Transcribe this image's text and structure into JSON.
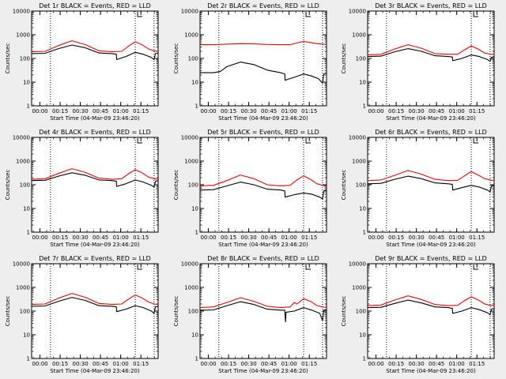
{
  "chart_data": [
    {
      "type": "line",
      "title": "Det 1r BLACK = Events, RED = LLD",
      "ylabel": "Counts/sec",
      "xlabel": "Start Time (04-Mar-09 23:46:20)",
      "y_scale": "log",
      "ylim": [
        1,
        10000
      ],
      "y_tick_labels": [
        "1",
        "10",
        "100",
        "1000",
        "10000"
      ],
      "x_tick_labels": [
        "00:00",
        "00:15",
        "00:30",
        "00:45",
        "01:00",
        "01:15"
      ],
      "xlim_minutes_after_start": [
        0,
        94
      ],
      "vertical_dotted_lines_minutes": [
        14,
        77,
        91
      ],
      "series": [
        {
          "color": "#ff0000",
          "x": [
            0,
            10,
            20,
            30,
            40,
            50,
            60,
            67,
            72,
            77,
            82,
            87,
            91,
            94
          ],
          "y": [
            190,
            200,
            350,
            560,
            380,
            210,
            190,
            200,
            330,
            500,
            380,
            250,
            210,
            200
          ]
        },
        {
          "color": "#000000",
          "x": [
            0,
            10,
            20,
            30,
            40,
            50,
            60,
            63,
            63.2,
            70,
            77,
            83,
            89,
            91,
            92,
            94
          ],
          "y": [
            160,
            165,
            260,
            370,
            280,
            170,
            160,
            150,
            90,
            120,
            180,
            150,
            110,
            90,
            160,
            170
          ]
        }
      ]
    },
    {
      "type": "line",
      "title": "Det 2r BLACK = Events, RED = LLD",
      "ylabel": "Counts/sec",
      "xlabel": "Start Time (04-Mar-09 23:46:20)",
      "y_scale": "log",
      "ylim": [
        1,
        10000
      ],
      "y_tick_labels": [
        "1",
        "10",
        "100",
        "1000",
        "10000"
      ],
      "x_tick_labels": [
        "00:00",
        "00:15",
        "00:30",
        "00:45",
        "01:00",
        "01:15"
      ],
      "xlim_minutes_after_start": [
        0,
        94
      ],
      "vertical_dotted_lines_minutes": [
        14,
        77,
        91
      ],
      "series": [
        {
          "color": "#ff0000",
          "x": [
            0,
            10,
            20,
            30,
            40,
            50,
            60,
            67,
            72,
            77,
            82,
            87,
            91,
            94
          ],
          "y": [
            380,
            380,
            400,
            420,
            410,
            390,
            380,
            380,
            450,
            520,
            470,
            420,
            400,
            390
          ]
        },
        {
          "color": "#000000",
          "x": [
            0,
            10,
            15,
            20,
            30,
            40,
            50,
            60,
            63,
            63.2,
            70,
            77,
            83,
            88,
            91,
            92,
            94
          ],
          "y": [
            25,
            25,
            28,
            45,
            70,
            55,
            32,
            25,
            22,
            12,
            16,
            22,
            18,
            14,
            9,
            22,
            25
          ]
        }
      ]
    },
    {
      "type": "line",
      "title": "Det 3r BLACK = Events, RED = LLD",
      "ylabel": "Counts/sec",
      "xlabel": "Start Time (04-Mar-09 23:46:20)",
      "y_scale": "log",
      "ylim": [
        1,
        10000
      ],
      "y_tick_labels": [
        "1",
        "10",
        "100",
        "1000",
        "10000"
      ],
      "x_tick_labels": [
        "00:00",
        "00:15",
        "00:30",
        "00:45",
        "01:00",
        "01:15"
      ],
      "xlim_minutes_after_start": [
        0,
        94
      ],
      "vertical_dotted_lines_minutes": [
        14,
        77,
        91
      ],
      "series": [
        {
          "color": "#ff0000",
          "x": [
            0,
            10,
            20,
            30,
            40,
            50,
            60,
            67,
            72,
            77,
            82,
            87,
            91,
            94
          ],
          "y": [
            140,
            150,
            250,
            380,
            270,
            160,
            150,
            150,
            230,
            340,
            250,
            170,
            150,
            150
          ]
        },
        {
          "color": "#000000",
          "x": [
            0,
            10,
            20,
            30,
            40,
            50,
            60,
            63,
            63.2,
            70,
            77,
            83,
            89,
            91,
            92,
            94
          ],
          "y": [
            120,
            125,
            190,
            260,
            200,
            130,
            120,
            115,
            80,
            100,
            140,
            120,
            90,
            75,
            110,
            120
          ]
        }
      ]
    },
    {
      "type": "line",
      "title": "Det 4r BLACK = Events, RED = LLD",
      "ylabel": "Counts/sec",
      "xlabel": "Start Time (04-Mar-09 23:46:20)",
      "y_scale": "log",
      "ylim": [
        1,
        10000
      ],
      "y_tick_labels": [
        "1",
        "10",
        "100",
        "1000",
        "10000"
      ],
      "x_tick_labels": [
        "00:00",
        "00:15",
        "00:30",
        "00:45",
        "01:00",
        "01:15"
      ],
      "xlim_minutes_after_start": [
        0,
        94
      ],
      "vertical_dotted_lines_minutes": [
        14,
        77,
        91
      ],
      "series": [
        {
          "color": "#ff0000",
          "x": [
            0,
            10,
            20,
            30,
            40,
            50,
            60,
            67,
            72,
            77,
            82,
            87,
            91,
            94
          ],
          "y": [
            170,
            180,
            300,
            480,
            330,
            190,
            170,
            180,
            290,
            430,
            320,
            210,
            180,
            170
          ]
        },
        {
          "color": "#000000",
          "x": [
            0,
            10,
            20,
            30,
            40,
            50,
            60,
            63,
            63.2,
            70,
            77,
            83,
            89,
            91,
            92,
            94
          ],
          "y": [
            150,
            155,
            230,
            320,
            250,
            160,
            150,
            140,
            85,
            110,
            160,
            130,
            95,
            80,
            140,
            150
          ]
        }
      ]
    },
    {
      "type": "line",
      "title": "Det 5r BLACK = Events, RED = LLD",
      "ylabel": "Counts/sec",
      "xlabel": "Start Time (04-Mar-09 23:46:20)",
      "y_scale": "log",
      "ylim": [
        1,
        10000
      ],
      "y_tick_labels": [
        "1",
        "10",
        "100",
        "1000",
        "10000"
      ],
      "x_tick_labels": [
        "00:00",
        "00:15",
        "00:30",
        "00:45",
        "01:00",
        "01:15"
      ],
      "xlim_minutes_after_start": [
        0,
        94
      ],
      "vertical_dotted_lines_minutes": [
        14,
        77,
        91
      ],
      "series": [
        {
          "color": "#ff0000",
          "x": [
            0,
            10,
            20,
            30,
            40,
            50,
            60,
            67,
            72,
            77,
            82,
            87,
            91,
            94
          ],
          "y": [
            90,
            95,
            150,
            260,
            180,
            100,
            90,
            95,
            160,
            240,
            170,
            110,
            95,
            90
          ]
        },
        {
          "color": "#000000",
          "x": [
            0,
            10,
            20,
            30,
            40,
            50,
            60,
            63,
            63.2,
            70,
            77,
            83,
            89,
            91,
            92,
            94
          ],
          "y": [
            60,
            62,
            90,
            130,
            100,
            65,
            60,
            55,
            30,
            38,
            45,
            40,
            30,
            25,
            55,
            60
          ]
        }
      ]
    },
    {
      "type": "line",
      "title": "Det 6r BLACK = Events, RED = LLD",
      "ylabel": "Counts/sec",
      "xlabel": "Start Time (04-Mar-09 23:46:20)",
      "y_scale": "log",
      "ylim": [
        1,
        10000
      ],
      "y_tick_labels": [
        "1",
        "10",
        "100",
        "1000",
        "10000"
      ],
      "x_tick_labels": [
        "00:00",
        "00:15",
        "00:30",
        "00:45",
        "01:00",
        "01:15"
      ],
      "xlim_minutes_after_start": [
        0,
        94
      ],
      "vertical_dotted_lines_minutes": [
        14,
        77,
        91
      ],
      "series": [
        {
          "color": "#ff0000",
          "x": [
            0,
            10,
            20,
            30,
            40,
            50,
            60,
            67,
            72,
            77,
            82,
            87,
            91,
            94
          ],
          "y": [
            150,
            160,
            250,
            400,
            280,
            170,
            150,
            155,
            240,
            360,
            260,
            180,
            160,
            150
          ]
        },
        {
          "color": "#000000",
          "x": [
            0,
            10,
            20,
            30,
            40,
            50,
            60,
            63,
            63.2,
            70,
            77,
            83,
            89,
            91,
            92,
            94
          ],
          "y": [
            110,
            115,
            170,
            230,
            180,
            120,
            110,
            105,
            60,
            75,
            95,
            80,
            60,
            50,
            90,
            100
          ]
        }
      ]
    },
    {
      "type": "line",
      "title": "Det 7r BLACK = Events, RED = LLD",
      "ylabel": "Counts/sec",
      "xlabel": "Start Time (04-Mar-09 23:46:20)",
      "y_scale": "log",
      "ylim": [
        1,
        10000
      ],
      "y_tick_labels": [
        "1",
        "10",
        "100",
        "1000",
        "10000"
      ],
      "x_tick_labels": [
        "00:00",
        "00:15",
        "00:30",
        "00:45",
        "01:00",
        "01:15"
      ],
      "xlim_minutes_after_start": [
        0,
        94
      ],
      "vertical_dotted_lines_minutes": [
        14,
        77,
        91
      ],
      "series": [
        {
          "color": "#ff0000",
          "x": [
            0,
            10,
            20,
            30,
            40,
            50,
            60,
            67,
            72,
            77,
            82,
            87,
            91,
            94
          ],
          "y": [
            190,
            200,
            350,
            560,
            380,
            210,
            190,
            200,
            320,
            480,
            360,
            240,
            200,
            190
          ]
        },
        {
          "color": "#000000",
          "x": [
            0,
            10,
            20,
            30,
            40,
            50,
            60,
            63,
            63.2,
            70,
            77,
            83,
            89,
            91,
            92,
            94
          ],
          "y": [
            160,
            165,
            260,
            380,
            280,
            170,
            160,
            150,
            95,
            120,
            170,
            140,
            100,
            80,
            150,
            160
          ]
        }
      ]
    },
    {
      "type": "line",
      "title": "Det 8r BLACK = Events, RED = LLD",
      "ylabel": "Counts/sec",
      "xlabel": "Start Time (04-Mar-09 23:46:20)",
      "y_scale": "log",
      "ylim": [
        1,
        10000
      ],
      "y_tick_labels": [
        "1",
        "10",
        "100",
        "1000",
        "10000"
      ],
      "x_tick_labels": [
        "00:00",
        "00:15",
        "00:30",
        "00:45",
        "01:00",
        "01:15"
      ],
      "xlim_minutes_after_start": [
        0,
        94
      ],
      "vertical_dotted_lines_minutes": [
        14,
        77,
        91
      ],
      "series": [
        {
          "color": "#ff0000",
          "x": [
            0,
            10,
            20,
            30,
            40,
            50,
            60,
            67,
            70,
            72,
            77,
            82,
            87,
            91,
            94
          ],
          "y": [
            140,
            150,
            230,
            370,
            260,
            160,
            140,
            150,
            230,
            200,
            330,
            260,
            170,
            150,
            140
          ]
        },
        {
          "color": "#000000",
          "x": [
            0,
            10,
            20,
            30,
            40,
            50,
            60,
            63,
            63.5,
            64,
            70,
            77,
            83,
            89,
            91,
            92,
            94
          ],
          "y": [
            110,
            112,
            170,
            250,
            190,
            120,
            110,
            110,
            35,
            90,
            100,
            140,
            110,
            80,
            40,
            110,
            115
          ]
        }
      ]
    },
    {
      "type": "line",
      "title": "Det 9r BLACK = Events, RED = LLD",
      "ylabel": "Counts/sec",
      "xlabel": "Start Time (04-Mar-09 23:46:20)",
      "y_scale": "log",
      "ylim": [
        1,
        10000
      ],
      "y_tick_labels": [
        "1",
        "10",
        "100",
        "1000",
        "10000"
      ],
      "x_tick_labels": [
        "00:00",
        "00:15",
        "00:30",
        "00:45",
        "01:00",
        "01:15"
      ],
      "xlim_minutes_after_start": [
        0,
        94
      ],
      "vertical_dotted_lines_minutes": [
        14,
        77,
        91
      ],
      "series": [
        {
          "color": "#ff0000",
          "x": [
            0,
            10,
            20,
            30,
            40,
            50,
            60,
            67,
            72,
            77,
            82,
            87,
            91,
            94
          ],
          "y": [
            170,
            180,
            290,
            440,
            310,
            190,
            170,
            175,
            280,
            400,
            300,
            200,
            175,
            170
          ]
        },
        {
          "color": "#000000",
          "x": [
            0,
            10,
            20,
            30,
            40,
            50,
            60,
            63,
            63.2,
            70,
            77,
            83,
            89,
            91,
            92,
            94
          ],
          "y": [
            140,
            145,
            210,
            290,
            220,
            150,
            140,
            130,
            80,
            100,
            140,
            115,
            85,
            70,
            120,
            130
          ]
        }
      ]
    }
  ]
}
